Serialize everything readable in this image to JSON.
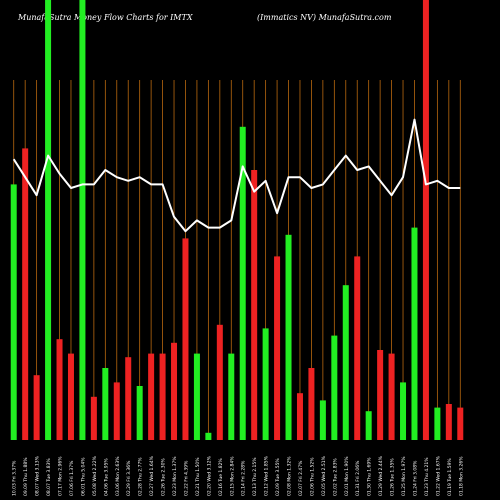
{
  "header": {
    "left": "MunafaSutra  Money Flow  Charts for IMTX",
    "right": "(Immatics NV) MunafaSutra.com"
  },
  "chart_data": {
    "type": "bar",
    "title": "MunafaSutra  Money Flow  Charts for IMTX",
    "subtitle": "(Immatics NV) MunafaSutra.com",
    "colors": {
      "up": "#22ee22",
      "down": "#ee2222",
      "line": "#ffffff",
      "grid": "#b8680f",
      "background": "#000000"
    },
    "ylim": [
      0,
      100
    ],
    "bars": [
      {
        "label": "10.03 Fri 3.37%",
        "value": 71,
        "color": "up",
        "line": 78
      },
      {
        "label": "09.09 Thu 1.88%",
        "value": 81,
        "color": "down",
        "line": 73
      },
      {
        "label": "08.07 Wed 3.13%",
        "value": 18,
        "color": "down",
        "line": 68
      },
      {
        "label": "08.07 Tue 3.83%",
        "value": 100,
        "color": "up",
        "line": 79
      },
      {
        "label": "07.17 Mon 2.96%",
        "value": 28,
        "color": "down",
        "line": 74
      },
      {
        "label": "07.06 Fri 1.37%",
        "value": 24,
        "color": "down",
        "line": 70
      },
      {
        "label": "06.01 Thu 5.04%",
        "value": 100,
        "color": "up",
        "line": 71
      },
      {
        "label": "05.08 Wed 2.22%",
        "value": 12,
        "color": "down",
        "line": 71
      },
      {
        "label": "04.06 Tue 3.95%",
        "value": 20,
        "color": "up",
        "line": 75
      },
      {
        "label": "03.06 Mon 2.63%",
        "value": 16,
        "color": "down",
        "line": 73
      },
      {
        "label": "02.29 Fri 3.36%",
        "value": 23,
        "color": "down",
        "line": 72
      },
      {
        "label": "02.28 Thu 2.77%",
        "value": 15,
        "color": "up",
        "line": 73
      },
      {
        "label": "02.27 Wed 1.64%",
        "value": 24,
        "color": "down",
        "line": 71
      },
      {
        "label": "02.26 Tue 2.30%",
        "value": 24,
        "color": "down",
        "line": 71
      },
      {
        "label": "02.23 Mon 1.37%",
        "value": 27,
        "color": "down",
        "line": 62
      },
      {
        "label": "02.22 Fri 4.39%",
        "value": 56,
        "color": "down",
        "line": 58
      },
      {
        "label": "02.21 Thu 1.50%",
        "value": 24,
        "color": "up",
        "line": 61
      },
      {
        "label": "02.20 Wed 3.12%",
        "value": 2,
        "color": "up",
        "line": 59
      },
      {
        "label": "02.16 Tue 1.82%",
        "value": 32,
        "color": "down",
        "line": 59
      },
      {
        "label": "02.15 Mon 2.84%",
        "value": 24,
        "color": "up",
        "line": 61
      },
      {
        "label": "02.14 Fri 2.28%",
        "value": 87,
        "color": "up",
        "line": 76
      },
      {
        "label": "02.13 Thu 2.15%",
        "value": 75,
        "color": "down",
        "line": 69
      },
      {
        "label": "02.12 Wed 1.85%",
        "value": 31,
        "color": "up",
        "line": 72
      },
      {
        "label": "02.09 Tue 3.55%",
        "value": 51,
        "color": "down",
        "line": 63
      },
      {
        "label": "02.08 Mon 1.32%",
        "value": 57,
        "color": "up",
        "line": 73
      },
      {
        "label": "02.07 Fri 2.47%",
        "value": 13,
        "color": "down",
        "line": 73
      },
      {
        "label": "02.06 Thu 1.52%",
        "value": 20,
        "color": "down",
        "line": 70
      },
      {
        "label": "02.05 Wed 2.51%",
        "value": 11,
        "color": "up",
        "line": 71
      },
      {
        "label": "02.02 Tue 2.83%",
        "value": 29,
        "color": "up",
        "line": 75
      },
      {
        "label": "02.01 Mon 1.90%",
        "value": 43,
        "color": "up",
        "line": 79
      },
      {
        "label": "01.31 Fri 2.06%",
        "value": 51,
        "color": "down",
        "line": 75
      },
      {
        "label": "01.30 Thu 1.69%",
        "value": 8,
        "color": "up",
        "line": 76
      },
      {
        "label": "01.29 Wed 2.44%",
        "value": 25,
        "color": "down",
        "line": 72
      },
      {
        "label": "01.26 Tue 1.35%",
        "value": 24,
        "color": "down",
        "line": 68
      },
      {
        "label": "01.25 Mon 1.97%",
        "value": 16,
        "color": "up",
        "line": 73
      },
      {
        "label": "01.24 Fri 3.08%",
        "value": 59,
        "color": "up",
        "line": 89
      },
      {
        "label": "01.23 Thu 4.21%",
        "value": 100,
        "color": "down",
        "line": 71
      },
      {
        "label": "01.22 Wed 1.67%",
        "value": 9,
        "color": "up",
        "line": 72
      },
      {
        "label": "01.19 Tue 1.59%",
        "value": 10,
        "color": "down",
        "line": 70
      },
      {
        "label": "01.18 Mon 3.26%",
        "value": 9,
        "color": "down",
        "line": 70
      }
    ]
  }
}
